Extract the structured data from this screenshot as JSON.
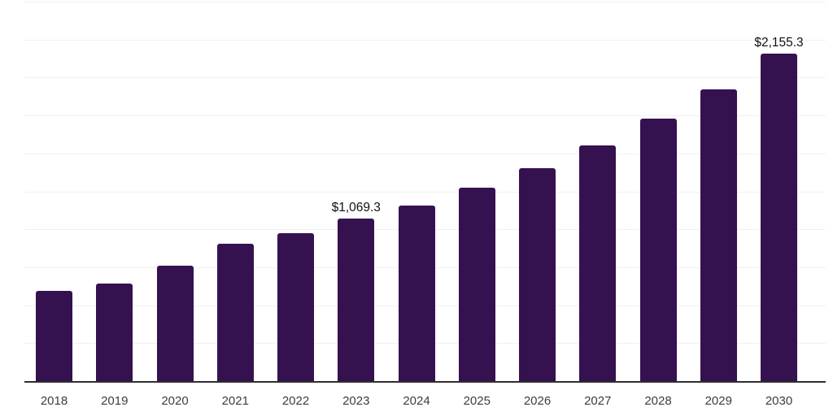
{
  "chart_data": {
    "type": "bar",
    "title": "",
    "xlabel": "",
    "ylabel": "",
    "categories": [
      "2018",
      "2019",
      "2020",
      "2021",
      "2022",
      "2023",
      "2024",
      "2025",
      "2026",
      "2027",
      "2028",
      "2029",
      "2030"
    ],
    "values": [
      595,
      640,
      759,
      904,
      975,
      1069.3,
      1155,
      1273,
      1401,
      1553,
      1728,
      1921,
      2155.3
    ],
    "data_labels": [
      "",
      "",
      "",
      "",
      "",
      "$1,069.3",
      "",
      "",
      "",
      "",
      "",
      "",
      "$2,155.3"
    ],
    "ylim": [
      0,
      2500
    ],
    "gridline_interval": 250,
    "grid": "horizontal-only",
    "legend_position": "none",
    "y_axis_ticks_visible": false,
    "colors": {
      "bar": "#361150",
      "axis_line": "#2e2e2e",
      "gridline": "#f0f0f2",
      "year_label": "#3d3d3d",
      "value_label": "#111111",
      "background": "#ffffff"
    }
  }
}
